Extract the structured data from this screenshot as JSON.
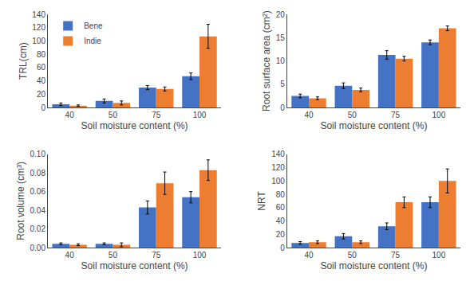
{
  "chart_data": [
    {
      "type": "bar",
      "xlabel": "Soil moisture content (%)",
      "ylabel": "TRL(cm)",
      "categories": [
        "40",
        "50",
        "75",
        "100"
      ],
      "series": [
        {
          "name": "Bene",
          "color": "#4472C4",
          "values": [
            5,
            10,
            30,
            47
          ],
          "errors": [
            2,
            3,
            3,
            5
          ]
        },
        {
          "name": "Indie",
          "color": "#ED7D31",
          "values": [
            3,
            7,
            28,
            107
          ],
          "errors": [
            1,
            3,
            3,
            18
          ]
        }
      ],
      "ylim": [
        0,
        140
      ],
      "yticks": [
        0,
        20,
        40,
        60,
        80,
        100,
        120,
        140
      ],
      "grid": false,
      "legend": "upper left"
    },
    {
      "type": "bar",
      "xlabel": "Soil moisture content (%)",
      "ylabel": "Root surface area (cm²)",
      "categories": [
        "40",
        "50",
        "75",
        "100"
      ],
      "series": [
        {
          "name": "Bene",
          "color": "#4472C4",
          "values": [
            2.5,
            4.7,
            11.3,
            14.0
          ],
          "errors": [
            0.4,
            0.6,
            0.9,
            0.5
          ]
        },
        {
          "name": "Indie",
          "color": "#ED7D31",
          "values": [
            2.0,
            3.8,
            10.5,
            17.0
          ],
          "errors": [
            0.3,
            0.4,
            0.5,
            0.5
          ]
        }
      ],
      "ylim": [
        0,
        20
      ],
      "yticks": [
        0,
        5,
        10,
        15,
        20
      ],
      "grid": false
    },
    {
      "type": "bar",
      "xlabel": "Soil moisture content (%)",
      "ylabel": "Root volume (cm³)",
      "categories": [
        "40",
        "50",
        "75",
        "100"
      ],
      "series": [
        {
          "name": "Bene",
          "color": "#4472C4",
          "values": [
            0.004,
            0.004,
            0.043,
            0.054
          ],
          "errors": [
            0.001,
            0.001,
            0.007,
            0.006
          ]
        },
        {
          "name": "Indie",
          "color": "#ED7D31",
          "values": [
            0.003,
            0.003,
            0.069,
            0.083
          ],
          "errors": [
            0.001,
            0.002,
            0.012,
            0.011
          ]
        }
      ],
      "ylim": [
        0,
        0.1
      ],
      "yticks": [
        {
          "value": 0,
          "label": "0.00"
        },
        0.02,
        0.04,
        0.06,
        0.08,
        {
          "value": 0.1,
          "label": "0.10"
        }
      ],
      "grid": false
    },
    {
      "type": "bar",
      "xlabel": "Soil moisture content (%)",
      "ylabel": "NRT",
      "categories": [
        "40",
        "50",
        "75",
        "100"
      ],
      "series": [
        {
          "name": "Bene",
          "color": "#4472C4",
          "values": [
            7,
            17,
            32,
            68
          ],
          "errors": [
            2,
            4,
            5,
            8
          ]
        },
        {
          "name": "Indie",
          "color": "#ED7D31",
          "values": [
            8,
            8,
            68,
            100
          ],
          "errors": [
            2,
            2,
            8,
            18
          ]
        }
      ],
      "ylim": [
        0,
        140
      ],
      "yticks": [
        0,
        20,
        40,
        60,
        80,
        100,
        120,
        140
      ],
      "grid": false
    }
  ]
}
